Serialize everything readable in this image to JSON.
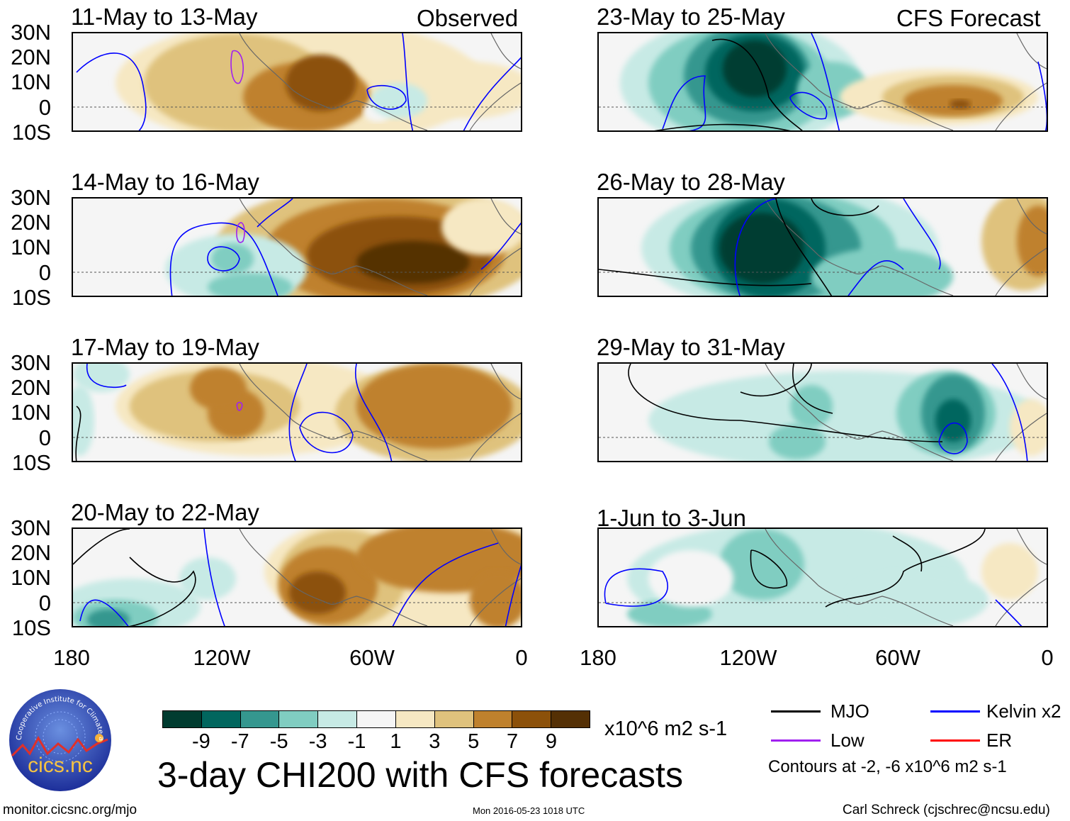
{
  "left_header": "Observed",
  "right_header": "CFS Forecast",
  "panels": [
    {
      "title": "11-May to 13-May",
      "group": "observed"
    },
    {
      "title": "14-May to 16-May",
      "group": "observed"
    },
    {
      "title": "17-May to 19-May",
      "group": "observed"
    },
    {
      "title": "20-May to 22-May",
      "group": "observed"
    },
    {
      "title": "23-May to 25-May",
      "group": "forecast"
    },
    {
      "title": "26-May to 28-May",
      "group": "forecast"
    },
    {
      "title": "29-May to 31-May",
      "group": "forecast"
    },
    {
      "title": "1-Jun to 3-Jun",
      "group": "forecast"
    }
  ],
  "lat_labels": [
    "30N",
    "20N",
    "10N",
    "0",
    "10S"
  ],
  "lon_labels": [
    "180",
    "120W",
    "60W",
    "0"
  ],
  "colorbar": {
    "colors": [
      "#003c30",
      "#01665e",
      "#35978f",
      "#80cdc1",
      "#c7eae5",
      "#f5f5f5",
      "#f6e8c3",
      "#dfc27d",
      "#bf812d",
      "#8c510a",
      "#543005"
    ],
    "labels": [
      "-9",
      "-7",
      "-5",
      "-3",
      "-1",
      "1",
      "3",
      "5",
      "7",
      "9"
    ],
    "units": "x10^6 m2 s-1"
  },
  "title": "3-day CHI200 with CFS forecasts",
  "legend": [
    {
      "label": "MJO",
      "color": "#000000"
    },
    {
      "label": "Kelvin x2",
      "color": "#0000ff"
    },
    {
      "label": "Low",
      "color": "#a020f0"
    },
    {
      "label": "ER",
      "color": "#ff0000"
    }
  ],
  "contours_note": "Contours at -2, -6 x10^6 m2 s-1",
  "logo_text": "cics.nc",
  "logo_ring_text": "Cooperative Institute for Climate and Satellites",
  "footer": {
    "url": "monitor.cicsnc.org/mjo",
    "timestamp": "Mon 2016-05-23 1018 UTC",
    "author": "Carl Schreck (cjschrec@ncsu.edu)"
  }
}
